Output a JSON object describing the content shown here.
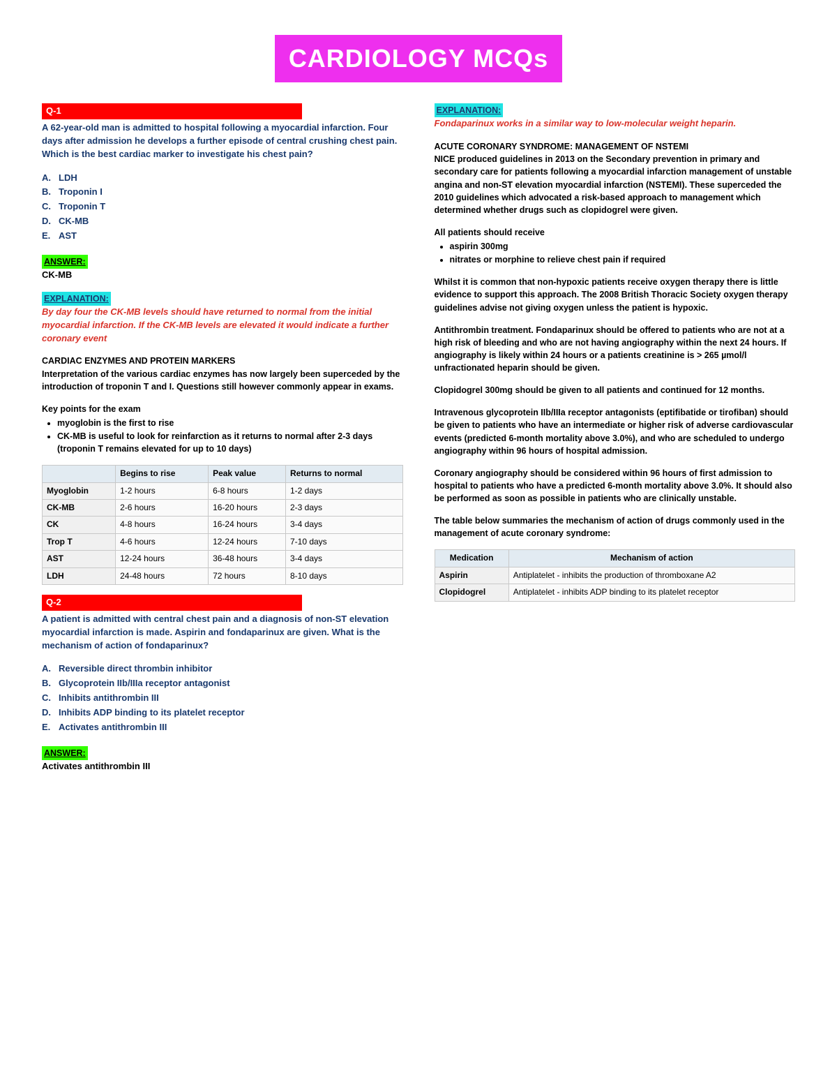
{
  "title": "CARDIOLOGY MCQs",
  "q1": {
    "header": "Q-1",
    "stem": "A 62-year-old man is admitted to hospital following a myocardial infarction. Four days after admission he develops a further episode of central crushing chest pain. Which is the best cardiac marker to investigate his chest pain?",
    "opts": [
      "LDH",
      "Troponin I",
      "Troponin T",
      "CK-MB",
      "AST"
    ],
    "answer": "CK-MB",
    "exp_main": "By day four the CK-MB levels should have returned to normal from the initial myocardial infarction. If the CK-MB levels are elevated it would indicate a further coronary event",
    "section_h": "CARDIAC ENZYMES AND PROTEIN MARKERS",
    "section_p": "Interpretation of the various cardiac enzymes has now largely been superceded by the introduction of troponin T and I. Questions still however commonly appear in exams.",
    "kp_h": "Key points for the exam",
    "kp": [
      "myoglobin is the first to rise",
      "CK-MB is useful to look for reinfarction as it returns to normal after 2-3 days (troponin T remains elevated for up to 10 days)"
    ],
    "table_cols": [
      "",
      "Begins to rise",
      "Peak value",
      "Returns to normal"
    ],
    "table_rows": [
      [
        "Myoglobin",
        "1-2 hours",
        "6-8 hours",
        "1-2 days"
      ],
      [
        "CK-MB",
        "2-6 hours",
        "16-20 hours",
        "2-3 days"
      ],
      [
        "CK",
        "4-8 hours",
        "16-24 hours",
        "3-4 days"
      ],
      [
        "Trop T",
        "4-6 hours",
        "12-24 hours",
        "7-10 days"
      ],
      [
        "AST",
        "12-24 hours",
        "36-48 hours",
        "3-4 days"
      ],
      [
        "LDH",
        "24-48 hours",
        "72 hours",
        "8-10 days"
      ]
    ]
  },
  "q2": {
    "header": "Q-2",
    "stem": "A patient is admitted with central chest pain and a diagnosis of non-ST elevation myocardial infarction is made. Aspirin and fondaparinux are given. What is the mechanism of action of fondaparinux?",
    "opts": [
      "Reversible direct thrombin inhibitor",
      "Glycoprotein IIb/IIIa receptor antagonist",
      "Inhibits antithrombin III",
      "Inhibits ADP binding to its platelet receptor",
      "Activates antithrombin III"
    ],
    "answer": "Activates antithrombin III",
    "exp_main": "Fondaparinux works in a similar way to low-molecular weight heparin.",
    "section_h": "ACUTE CORONARY SYNDROME: MANAGEMENT OF NSTEMI",
    "section_p": "NICE produced guidelines in 2013 on the Secondary prevention in primary and secondary care for patients following a myocardial infarction management of unstable angina and non-ST elevation myocardial infarction (NSTEMI). These superceded the 2010 guidelines which advocated a risk-based approach to management which determined whether drugs such as clopidogrel were given.",
    "all_h": "All patients should receive",
    "all": [
      "aspirin 300mg",
      "nitrates or morphine to relieve chest pain if required"
    ],
    "p1": "Whilst it is common that non-hypoxic patients receive oxygen therapy there is little evidence to support this approach. The 2008 British Thoracic Society oxygen therapy guidelines advise not giving oxygen unless the patient is hypoxic.",
    "p2": "Antithrombin treatment. Fondaparinux should be offered to patients who are not at a high risk of bleeding and who are not having angiography within the next 24 hours. If angiography is likely within 24 hours or a patients creatinine is > 265 µmol/l unfractionated heparin should be given.",
    "p3": "Clopidogrel 300mg should be given to all patients and continued for 12 months.",
    "p4": "Intravenous glycoprotein IIb/IIIa receptor antagonists (eptifibatide or tirofiban) should be given to patients who have an intermediate or higher risk of adverse cardiovascular events (predicted 6-month mortality above 3.0%), and who are scheduled to undergo angiography within 96 hours of hospital admission.",
    "p5": "Coronary angiography should be considered within 96 hours of first admission to hospital to patients who have a predicted 6-month mortality above 3.0%. It should also be performed as soon as possible in patients who are clinically unstable.",
    "p6": "The table below summaries the mechanism of action of drugs commonly used in the management of acute coronary syndrome:",
    "moa_cols": [
      "Medication",
      "Mechanism of action"
    ],
    "moa_rows": [
      [
        "Aspirin",
        "Antiplatelet - inhibits the production of thromboxane A2"
      ],
      [
        "Clopidogrel",
        "Antiplatelet - inhibits ADP binding to its platelet receptor"
      ]
    ]
  },
  "labels": {
    "answer": "ANSWER:",
    "explanation": "EXPLANATION:"
  },
  "letters": [
    "A.",
    "B.",
    "C.",
    "D.",
    "E."
  ]
}
